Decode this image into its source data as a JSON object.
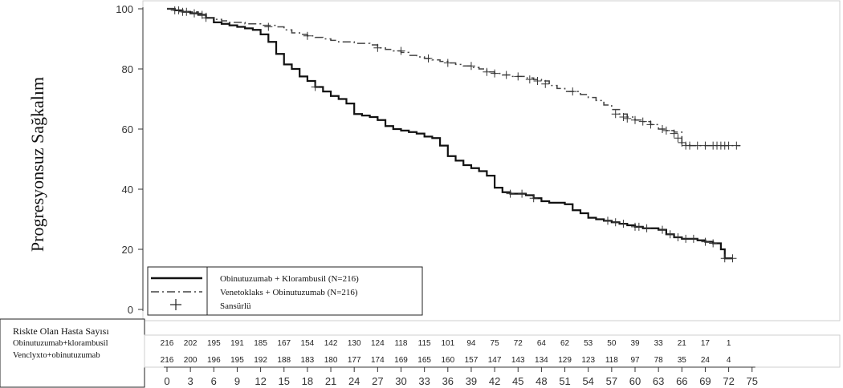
{
  "chart_data": {
    "type": "line",
    "title": "",
    "xlabel": "",
    "ylabel": "Progresyonsuz Sağkalım",
    "xlim": [
      0,
      75
    ],
    "ylim": [
      0,
      100
    ],
    "x_ticks": [
      0,
      3,
      6,
      9,
      12,
      15,
      18,
      21,
      24,
      27,
      30,
      33,
      36,
      39,
      42,
      45,
      48,
      51,
      54,
      57,
      60,
      63,
      66,
      69,
      72,
      75
    ],
    "y_ticks": [
      0,
      20,
      40,
      60,
      80,
      100
    ],
    "grid": false,
    "legend": {
      "position": "bottom-left",
      "entries": [
        {
          "label": "Obinutuzumab + Klorambusil (N=216)",
          "style": "solid"
        },
        {
          "label": "Venetoklaks + Obinutuzumab (N=216)",
          "style": "dash-dot"
        },
        {
          "label": "Sansürlü",
          "style": "censor-marker"
        }
      ]
    },
    "series": [
      {
        "name": "Obinutuzumab + Klorambusil (N=216)",
        "style": "solid",
        "color": "#111111",
        "points": [
          [
            0,
            100
          ],
          [
            1,
            99.5
          ],
          [
            2,
            99
          ],
          [
            3,
            98.5
          ],
          [
            4,
            98
          ],
          [
            5,
            97
          ],
          [
            6,
            95.5
          ],
          [
            7,
            95
          ],
          [
            8,
            94.5
          ],
          [
            9,
            94
          ],
          [
            10,
            93.5
          ],
          [
            11,
            93
          ],
          [
            12,
            91.5
          ],
          [
            13,
            89
          ],
          [
            14,
            85
          ],
          [
            15,
            81.5
          ],
          [
            16,
            80
          ],
          [
            17,
            77.5
          ],
          [
            18,
            76
          ],
          [
            19,
            74
          ],
          [
            20,
            72.5
          ],
          [
            21,
            71
          ],
          [
            22,
            70
          ],
          [
            23,
            68.5
          ],
          [
            24,
            65
          ],
          [
            25,
            64.5
          ],
          [
            26,
            64
          ],
          [
            27,
            63
          ],
          [
            28,
            61
          ],
          [
            29,
            60
          ],
          [
            30,
            59.5
          ],
          [
            31,
            59
          ],
          [
            32,
            58.5
          ],
          [
            33,
            57.5
          ],
          [
            34,
            57
          ],
          [
            35,
            54.5
          ],
          [
            36,
            51
          ],
          [
            37,
            49.5
          ],
          [
            38,
            48
          ],
          [
            39,
            47
          ],
          [
            40,
            46
          ],
          [
            41,
            44.5
          ],
          [
            42,
            40.5
          ],
          [
            43,
            39
          ],
          [
            44,
            38.5
          ],
          [
            45,
            38.5
          ],
          [
            46,
            38
          ],
          [
            47,
            37
          ],
          [
            48,
            36
          ],
          [
            49,
            35.5
          ],
          [
            50,
            35.5
          ],
          [
            51,
            35
          ],
          [
            52,
            33
          ],
          [
            53,
            32
          ],
          [
            54,
            30.5
          ],
          [
            55,
            30
          ],
          [
            56,
            29.5
          ],
          [
            57,
            29
          ],
          [
            58,
            28.5
          ],
          [
            59,
            28
          ],
          [
            60,
            27.5
          ],
          [
            61,
            27
          ],
          [
            62,
            27
          ],
          [
            63,
            26.5
          ],
          [
            64,
            25
          ],
          [
            65,
            24
          ],
          [
            66,
            23.5
          ],
          [
            67,
            23.5
          ],
          [
            68,
            23
          ],
          [
            69,
            22.5
          ],
          [
            70,
            22
          ],
          [
            71,
            20
          ],
          [
            71.5,
            17
          ],
          [
            72,
            17
          ],
          [
            72.5,
            17
          ]
        ],
        "censored": [
          [
            1.5,
            99.5
          ],
          [
            2.5,
            99
          ],
          [
            3.5,
            98.5
          ],
          [
            4.5,
            98
          ],
          [
            19,
            74
          ],
          [
            44,
            38.5
          ],
          [
            45.5,
            38.5
          ],
          [
            47,
            37
          ],
          [
            56.5,
            29.5
          ],
          [
            57.5,
            29
          ],
          [
            58.5,
            28.5
          ],
          [
            60,
            27.5
          ],
          [
            60.5,
            27.5
          ],
          [
            61.5,
            27
          ],
          [
            63.5,
            26.5
          ],
          [
            64.5,
            25
          ],
          [
            65.5,
            24
          ],
          [
            66.5,
            23.5
          ],
          [
            67.5,
            23.5
          ],
          [
            69,
            22.5
          ],
          [
            70,
            22
          ],
          [
            71.5,
            17
          ],
          [
            72.5,
            17
          ]
        ]
      },
      {
        "name": "Venetoklaks + Obinutuzumab (N=216)",
        "style": "dash-dot",
        "color": "#444444",
        "points": [
          [
            0,
            100
          ],
          [
            1,
            99.5
          ],
          [
            2,
            99
          ],
          [
            3,
            99
          ],
          [
            4,
            98.5
          ],
          [
            5,
            97
          ],
          [
            6,
            96.5
          ],
          [
            7,
            96
          ],
          [
            8,
            95.5
          ],
          [
            9,
            95.5
          ],
          [
            10,
            95
          ],
          [
            12,
            94.5
          ],
          [
            14,
            94
          ],
          [
            15,
            93
          ],
          [
            16,
            92
          ],
          [
            17,
            91.5
          ],
          [
            18,
            91
          ],
          [
            19,
            90.5
          ],
          [
            20,
            90
          ],
          [
            21,
            89.5
          ],
          [
            22,
            89
          ],
          [
            24,
            88.5
          ],
          [
            26,
            88
          ],
          [
            27,
            87
          ],
          [
            28,
            86.5
          ],
          [
            29,
            86
          ],
          [
            30,
            85.5
          ],
          [
            31,
            84.5
          ],
          [
            32,
            84
          ],
          [
            33,
            83.5
          ],
          [
            34,
            83
          ],
          [
            35,
            82.5
          ],
          [
            36,
            82
          ],
          [
            37,
            81.5
          ],
          [
            38,
            81
          ],
          [
            39,
            80.5
          ],
          [
            40,
            80
          ],
          [
            41,
            79
          ],
          [
            42,
            78.5
          ],
          [
            43,
            78
          ],
          [
            44,
            77.5
          ],
          [
            45,
            77.5
          ],
          [
            46,
            77
          ],
          [
            47,
            76.5
          ],
          [
            48,
            76
          ],
          [
            49,
            74.5
          ],
          [
            50,
            73.5
          ],
          [
            51,
            72.5
          ],
          [
            52,
            72.5
          ],
          [
            53,
            71.5
          ],
          [
            54,
            70.5
          ],
          [
            55,
            69.5
          ],
          [
            56,
            68
          ],
          [
            57,
            66.5
          ],
          [
            58,
            65
          ],
          [
            59,
            64
          ],
          [
            60,
            63
          ],
          [
            61,
            62.5
          ],
          [
            62,
            61.5
          ],
          [
            63,
            60
          ],
          [
            64,
            59.5
          ],
          [
            65,
            59
          ],
          [
            66,
            55
          ],
          [
            67,
            54.5
          ],
          [
            68,
            54.5
          ],
          [
            70,
            54.5
          ],
          [
            72,
            54.5
          ],
          [
            73.5,
            54.5
          ]
        ],
        "censored": [
          [
            1,
            99.5
          ],
          [
            2,
            99
          ],
          [
            3.5,
            98.5
          ],
          [
            5,
            97
          ],
          [
            13,
            94
          ],
          [
            18,
            91
          ],
          [
            27,
            87
          ],
          [
            30,
            86
          ],
          [
            33.5,
            83.5
          ],
          [
            36,
            82
          ],
          [
            39,
            81
          ],
          [
            41,
            79
          ],
          [
            42,
            78.5
          ],
          [
            43.5,
            78
          ],
          [
            45,
            77.5
          ],
          [
            46.5,
            76.5
          ],
          [
            47.5,
            76
          ],
          [
            48.5,
            75
          ],
          [
            52,
            72.5
          ],
          [
            57.5,
            65
          ],
          [
            58.5,
            64
          ],
          [
            59,
            63.5
          ],
          [
            60,
            63
          ],
          [
            61,
            62.5
          ],
          [
            62,
            61.5
          ],
          [
            63.5,
            60
          ],
          [
            64,
            59.5
          ],
          [
            65,
            58.5
          ],
          [
            65.5,
            57
          ],
          [
            66,
            55.5
          ],
          [
            66.5,
            54.5
          ],
          [
            67,
            54.5
          ],
          [
            68,
            54.5
          ],
          [
            69,
            54.5
          ],
          [
            70,
            54.5
          ],
          [
            70.5,
            54.5
          ],
          [
            71,
            54.5
          ],
          [
            71.5,
            54.5
          ],
          [
            72,
            54.5
          ],
          [
            73,
            54.5
          ]
        ]
      }
    ],
    "risk_table": {
      "title": "Riskte Olan Hasta Sayısı",
      "times": [
        0,
        3,
        6,
        9,
        12,
        15,
        18,
        21,
        24,
        27,
        30,
        33,
        36,
        39,
        42,
        45,
        48,
        51,
        54,
        57,
        60,
        63,
        66,
        69,
        72
      ],
      "rows": [
        {
          "label": "Obinutuzumab+klorambusil",
          "values": [
            "216",
            "202",
            "195",
            "191",
            "185",
            "167",
            "154",
            "142",
            "130",
            "124",
            "118",
            "115",
            "101",
            "94",
            "75",
            "72",
            "64",
            "62",
            "53",
            "50",
            "39",
            "33",
            "21",
            "17",
            "1"
          ]
        },
        {
          "label": "Venclyxto+obinutuzumab",
          "values": [
            "216",
            "200",
            "196",
            "195",
            "192",
            "188",
            "183",
            "180",
            "177",
            "174",
            "169",
            "165",
            "160",
            "157",
            "147",
            "143",
            "134",
            "129",
            "123",
            "118",
            "97",
            "78",
            "35",
            "24",
            "4"
          ]
        }
      ]
    }
  }
}
